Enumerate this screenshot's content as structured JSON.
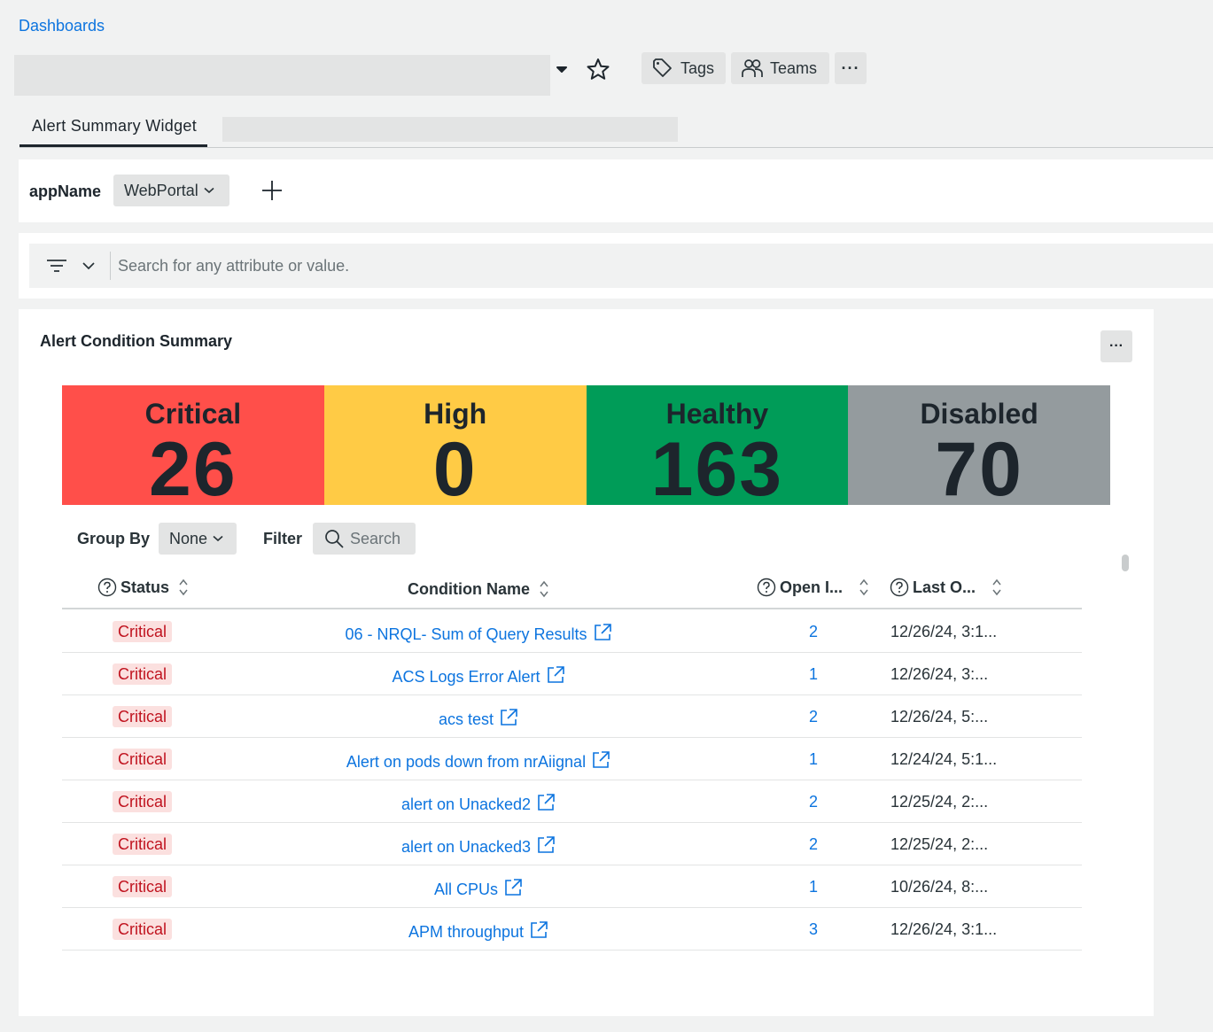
{
  "breadcrumb": "Dashboards",
  "header": {
    "tags_label": "Tags",
    "teams_label": "Teams",
    "more_label": "···"
  },
  "tabs": [
    {
      "label": "Alert Summary Widget"
    }
  ],
  "variables": {
    "name": "appName",
    "value": "WebPortal"
  },
  "filter": {
    "placeholder": "Search for any attribute or value."
  },
  "widget": {
    "title": "Alert Condition Summary",
    "more_label": "···",
    "tiles": [
      {
        "label": "Critical",
        "value": "26",
        "color": "#ff4f4a"
      },
      {
        "label": "High",
        "value": "0",
        "color": "#ffcb45"
      },
      {
        "label": "Healthy",
        "value": "163",
        "color": "#009c58"
      },
      {
        "label": "Disabled",
        "value": "70",
        "color": "#949b9e"
      }
    ],
    "group_by_label": "Group By",
    "group_by_value": "None",
    "filter_label": "Filter",
    "search_placeholder": "Search",
    "columns": {
      "status": "Status",
      "condition": "Condition Name",
      "open": "Open I...",
      "last": "Last O..."
    },
    "rows": [
      {
        "status": "Critical",
        "condition": "06 - NRQL- Sum of Query Results",
        "open": "2",
        "last": "12/26/24, 3:1..."
      },
      {
        "status": "Critical",
        "condition": "ACS Logs Error Alert",
        "open": "1",
        "last": "12/26/24, 3:..."
      },
      {
        "status": "Critical",
        "condition": "acs test",
        "open": "2",
        "last": "12/26/24, 5:..."
      },
      {
        "status": "Critical",
        "condition": "Alert on pods down from nrAiignal",
        "open": "1",
        "last": "12/24/24, 5:1..."
      },
      {
        "status": "Critical",
        "condition": "alert on Unacked2",
        "open": "2",
        "last": "12/25/24, 2:..."
      },
      {
        "status": "Critical",
        "condition": "alert on Unacked3",
        "open": "2",
        "last": "12/25/24, 2:..."
      },
      {
        "status": "Critical",
        "condition": "All CPUs",
        "open": "1",
        "last": "10/26/24, 8:..."
      },
      {
        "status": "Critical",
        "condition": "APM throughput",
        "open": "3",
        "last": "12/26/24, 3:1..."
      }
    ]
  }
}
